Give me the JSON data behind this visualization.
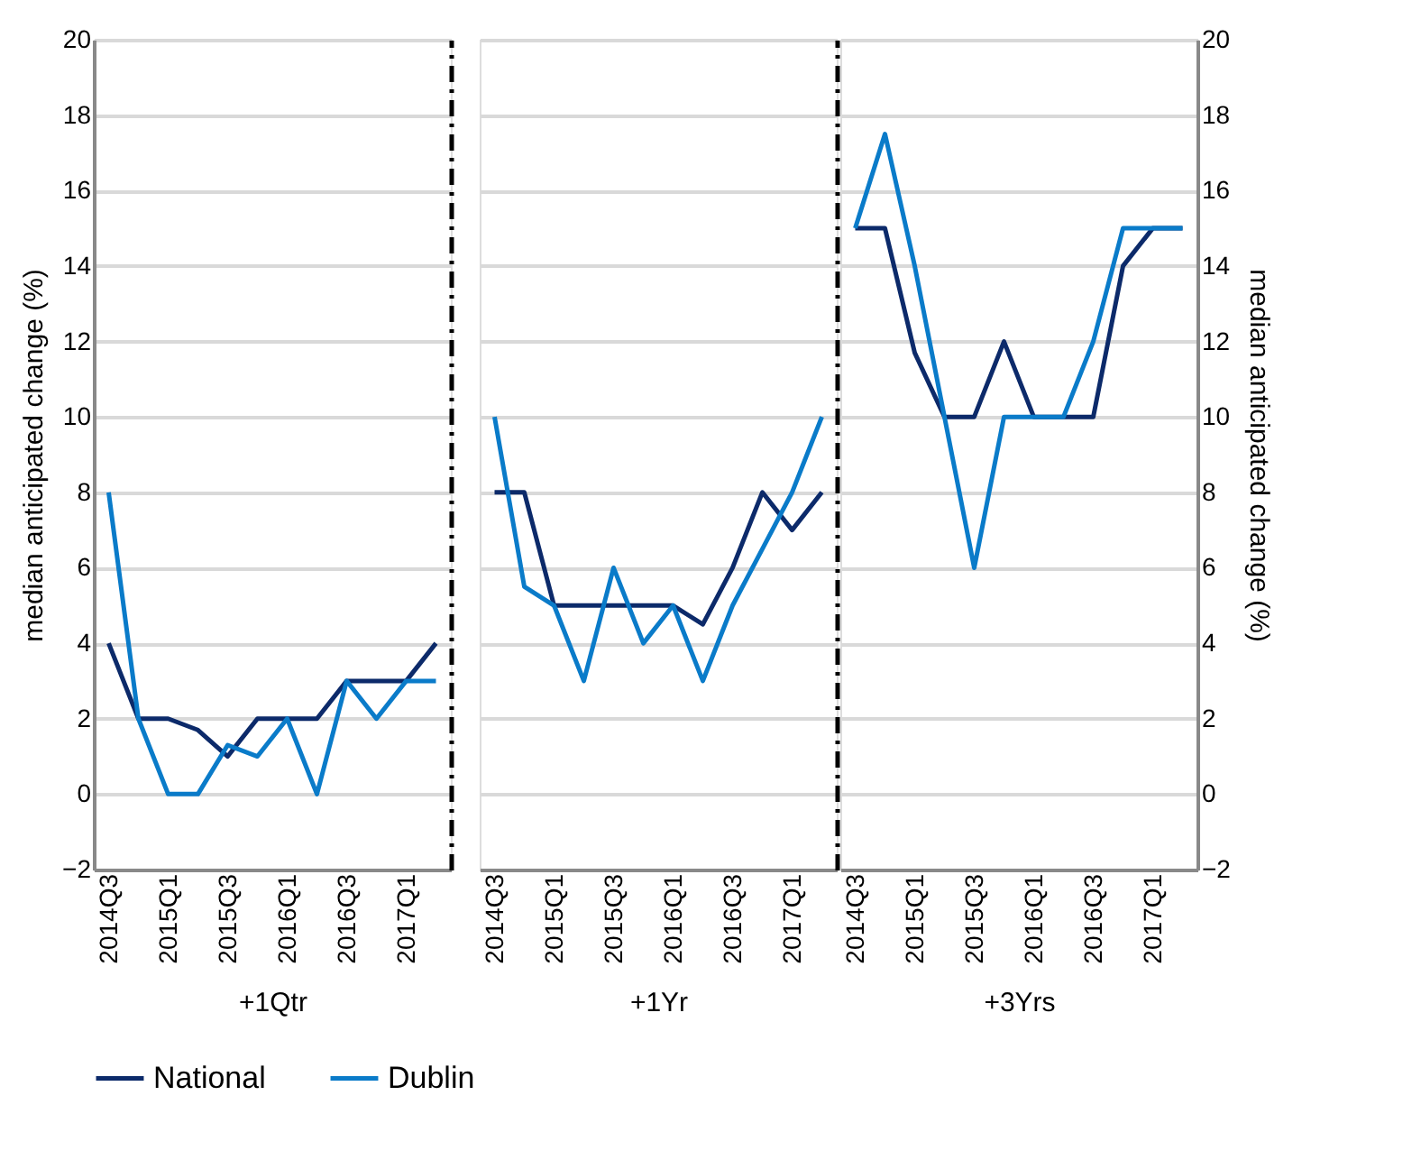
{
  "chart_data": [
    {
      "type": "line",
      "xlabel": "+1Qtr",
      "ylabel": "median anticipated change (%)",
      "legend": "bottom",
      "categories": [
        "2014Q3",
        null,
        "2015Q1",
        null,
        "2015Q3",
        null,
        "2016Q1",
        null,
        "2016Q3",
        null,
        "2017Q1",
        null
      ],
      "ylim": [
        -2,
        20
      ],
      "yticks": [
        -2,
        0,
        2,
        4,
        6,
        8,
        10,
        12,
        14,
        16,
        18,
        20
      ],
      "grid": "y",
      "series": [
        {
          "name": "National",
          "color": "#0c2a6a",
          "values": [
            4,
            2,
            2,
            1.7,
            1,
            2,
            2,
            2,
            3,
            3,
            3,
            4
          ]
        },
        {
          "name": "Dublin",
          "color": "#0a7bc9",
          "values": [
            8,
            2,
            0,
            0,
            1.3,
            1,
            2,
            0,
            3,
            2,
            3,
            3
          ]
        }
      ]
    },
    {
      "type": "line",
      "xlabel": "+1Yr",
      "categories": [
        "2014Q3",
        null,
        "2015Q1",
        null,
        "2015Q3",
        null,
        "2016Q1",
        null,
        "2016Q3",
        null,
        "2017Q1",
        null
      ],
      "ylim": [
        -2,
        20
      ],
      "yticks": [
        -2,
        0,
        2,
        4,
        6,
        8,
        10,
        12,
        14,
        16,
        18,
        20
      ],
      "grid": "y",
      "tick_labels": "x",
      "series": [
        {
          "name": "National",
          "color": "#0c2a6a",
          "values": [
            8,
            8,
            5,
            5,
            5,
            5,
            5,
            4.5,
            6,
            8,
            7,
            8
          ]
        },
        {
          "name": "Dublin",
          "color": "#0a7bc9",
          "values": [
            10,
            5.5,
            5,
            3,
            6,
            4,
            5,
            3,
            5,
            6.5,
            8,
            10
          ]
        }
      ]
    },
    {
      "type": "line",
      "xlabel": "+3Yrs",
      "y2label": "median anticipated change (%)",
      "categories": [
        "2014Q3",
        null,
        "2015Q1",
        null,
        "2015Q3",
        null,
        "2016Q1",
        null,
        "2016Q3",
        null,
        "2017Q1",
        null
      ],
      "y2lim": [
        -2,
        20
      ],
      "y2ticks": [
        -2,
        0,
        2,
        4,
        6,
        8,
        10,
        12,
        14,
        16,
        18,
        20
      ],
      "grid": "y",
      "series": [
        {
          "name": "National",
          "color": "#0c2a6a",
          "axis": "y2",
          "values": [
            15,
            15,
            11.7,
            10,
            10,
            12,
            10,
            10,
            10,
            14,
            15,
            15
          ]
        },
        {
          "name": "Dublin",
          "color": "#0a7bc9",
          "axis": "y2",
          "values": [
            15,
            17.5,
            14,
            10,
            6,
            10,
            10,
            10,
            12,
            15,
            15,
            15
          ]
        }
      ]
    }
  ]
}
